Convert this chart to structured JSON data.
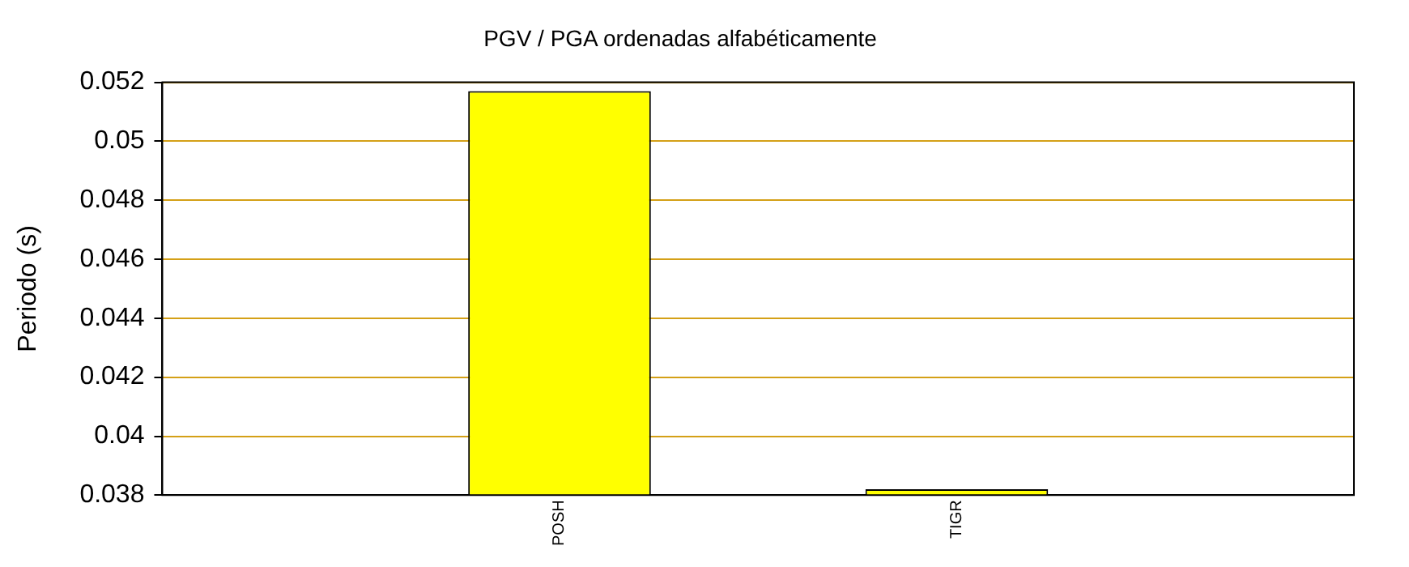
{
  "chart_data": {
    "type": "bar",
    "title": "PGV / PGA ordenadas alfabéticamente",
    "ylabel": "Periodo (s)",
    "categories": [
      null,
      "POSH",
      "TIGR",
      null
    ],
    "values": [
      null,
      0.0517,
      0.0382,
      null
    ],
    "color": "#ffff00",
    "ylim": [
      0.038,
      0.052
    ],
    "yticks": [
      0.038,
      0.04,
      0.042,
      0.044,
      0.046,
      0.048,
      0.05,
      0.052
    ],
    "grid": "y",
    "legend": false
  }
}
